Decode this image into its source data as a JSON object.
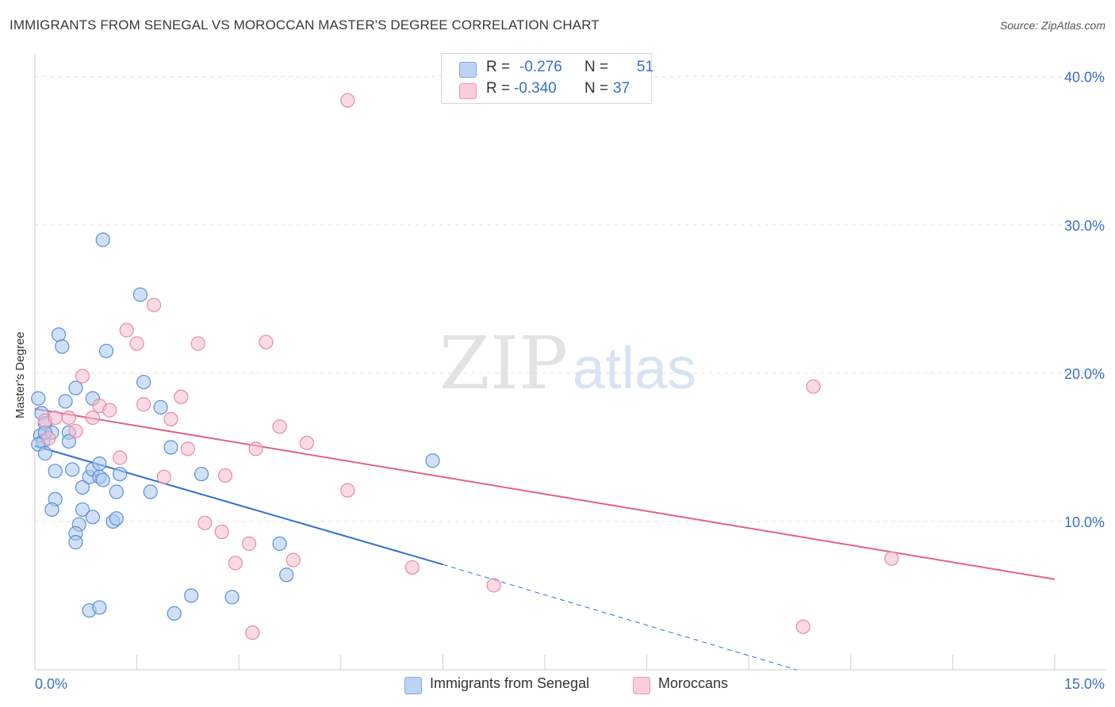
{
  "title": "IMMIGRANTS FROM SENEGAL VS MOROCCAN MASTER'S DEGREE CORRELATION CHART",
  "source": "Source: ZipAtlas.com",
  "watermark": {
    "zip": "ZIP",
    "atlas": "atlas"
  },
  "legend": {
    "r_label": "R =",
    "n_label": "N =",
    "rows": [
      {
        "r": "-0.276",
        "n": "51"
      },
      {
        "r": "-0.340",
        "n": "37"
      }
    ]
  },
  "colors": {
    "blue_fill": "#a9c8f0",
    "blue_stroke": "#5b8fd6",
    "blue_line": "#2f6fd0",
    "pink_fill": "#f6bccd",
    "pink_stroke": "#e68aa8",
    "pink_line": "#e06090",
    "tick_color": "#3a6fc4",
    "grid": "#e2e2e2"
  },
  "chart_data": {
    "type": "scatter",
    "title": "IMMIGRANTS FROM SENEGAL VS MOROCCAN MASTER'S DEGREE CORRELATION CHART",
    "xlabel": "",
    "ylabel": "Master's Degree",
    "xlim": [
      0,
      15
    ],
    "ylim": [
      0,
      41
    ],
    "x_tick_labels": [
      "0.0%",
      "15.0%"
    ],
    "y_ticks": [
      10,
      20,
      30,
      40
    ],
    "y_tick_labels": [
      "10.0%",
      "20.0%",
      "30.0%",
      "40.0%"
    ],
    "grid": true,
    "series": [
      {
        "name": "Immigrants from Senegal",
        "color": "blue",
        "r": -0.276,
        "n": 51,
        "points": [
          [
            0.05,
            18.3
          ],
          [
            0.1,
            17.3
          ],
          [
            0.15,
            16.6
          ],
          [
            0.08,
            15.8
          ],
          [
            0.12,
            15.4
          ],
          [
            0.05,
            15.2
          ],
          [
            0.15,
            14.6
          ],
          [
            0.25,
            16.0
          ],
          [
            0.35,
            22.6
          ],
          [
            0.4,
            21.8
          ],
          [
            0.45,
            18.1
          ],
          [
            0.6,
            19.0
          ],
          [
            0.5,
            16.0
          ],
          [
            0.5,
            15.4
          ],
          [
            0.3,
            13.4
          ],
          [
            0.55,
            13.5
          ],
          [
            0.3,
            11.5
          ],
          [
            0.25,
            10.8
          ],
          [
            0.7,
            12.3
          ],
          [
            0.7,
            10.8
          ],
          [
            0.65,
            9.8
          ],
          [
            0.6,
            9.2
          ],
          [
            0.6,
            8.6
          ],
          [
            0.85,
            10.3
          ],
          [
            0.8,
            13.0
          ],
          [
            0.85,
            13.5
          ],
          [
            0.95,
            13.0
          ],
          [
            0.95,
            13.9
          ],
          [
            1.0,
            12.8
          ],
          [
            1.2,
            12.0
          ],
          [
            1.25,
            13.2
          ],
          [
            1.15,
            10.0
          ],
          [
            1.2,
            10.2
          ],
          [
            1.0,
            29.0
          ],
          [
            1.05,
            21.5
          ],
          [
            0.85,
            18.3
          ],
          [
            1.55,
            25.3
          ],
          [
            1.6,
            19.4
          ],
          [
            1.7,
            12.0
          ],
          [
            1.85,
            17.7
          ],
          [
            2.0,
            15.0
          ],
          [
            2.45,
            13.2
          ],
          [
            2.3,
            5.0
          ],
          [
            2.9,
            4.9
          ],
          [
            3.6,
            8.5
          ],
          [
            3.7,
            6.4
          ],
          [
            5.85,
            14.1
          ],
          [
            0.8,
            4.0
          ],
          [
            0.95,
            4.2
          ],
          [
            2.05,
            3.8
          ],
          [
            0.15,
            16.0
          ]
        ]
      },
      {
        "name": "Moroccans",
        "color": "pink",
        "r": -0.34,
        "n": 37,
        "points": [
          [
            0.15,
            16.8
          ],
          [
            0.2,
            15.6
          ],
          [
            0.3,
            17.0
          ],
          [
            0.5,
            17.0
          ],
          [
            0.6,
            16.1
          ],
          [
            0.7,
            19.8
          ],
          [
            0.85,
            17.0
          ],
          [
            0.95,
            17.8
          ],
          [
            1.1,
            17.5
          ],
          [
            1.25,
            14.3
          ],
          [
            1.35,
            22.9
          ],
          [
            1.5,
            22.0
          ],
          [
            1.6,
            17.9
          ],
          [
            1.75,
            24.6
          ],
          [
            2.0,
            16.9
          ],
          [
            2.15,
            18.4
          ],
          [
            2.25,
            14.9
          ],
          [
            2.4,
            22.0
          ],
          [
            1.9,
            13.0
          ],
          [
            2.5,
            9.9
          ],
          [
            2.75,
            9.3
          ],
          [
            2.8,
            13.1
          ],
          [
            2.95,
            7.2
          ],
          [
            3.15,
            8.5
          ],
          [
            3.25,
            14.9
          ],
          [
            3.4,
            22.1
          ],
          [
            3.6,
            16.4
          ],
          [
            3.8,
            7.4
          ],
          [
            4.0,
            15.3
          ],
          [
            4.6,
            12.1
          ],
          [
            4.6,
            38.4
          ],
          [
            5.55,
            6.9
          ],
          [
            6.75,
            5.7
          ],
          [
            3.2,
            2.5
          ],
          [
            11.45,
            19.1
          ],
          [
            11.3,
            2.9
          ],
          [
            12.6,
            7.5
          ]
        ]
      }
    ],
    "trend_lines": [
      {
        "series": "Immigrants from Senegal",
        "x1": 0,
        "y1": 15.1,
        "x2": 6.0,
        "y2": 7.1,
        "dashed_to_x": 11.2,
        "dashed_to_y": 0.0
      },
      {
        "series": "Moroccans",
        "x1": 0,
        "y1": 17.6,
        "x2": 15.0,
        "y2": 6.1
      }
    ]
  }
}
